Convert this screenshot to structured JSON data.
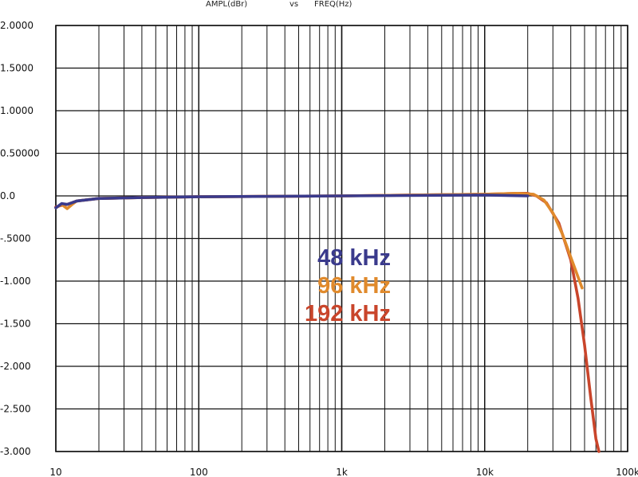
{
  "chart_data": {
    "type": "line",
    "title_left": "AMPL(dBr)",
    "title_mid": "vs",
    "title_right": "FREQ(Hz)",
    "xscale": "log",
    "xlim": [
      10,
      100000
    ],
    "ylim": [
      -3.0,
      2.0
    ],
    "grid": true,
    "x_ticks": [
      {
        "value": 10,
        "label": "10"
      },
      {
        "value": 100,
        "label": "100"
      },
      {
        "value": 1000,
        "label": "1k"
      },
      {
        "value": 10000,
        "label": "10k"
      },
      {
        "value": 100000,
        "label": "100k"
      }
    ],
    "y_ticks": [
      {
        "value": 2.0,
        "label": "2.0000"
      },
      {
        "value": 1.5,
        "label": "1.5000"
      },
      {
        "value": 1.0,
        "label": "1.0000"
      },
      {
        "value": 0.5,
        "label": "0.50000"
      },
      {
        "value": 0.0,
        "label": "0.0"
      },
      {
        "value": -0.5,
        "label": "-.5000"
      },
      {
        "value": -1.0,
        "label": "-1.000"
      },
      {
        "value": -1.5,
        "label": "-1.500"
      },
      {
        "value": -2.0,
        "label": "-2.000"
      },
      {
        "value": -2.5,
        "label": "-2.500"
      },
      {
        "value": -3.0,
        "label": "-3.000"
      }
    ],
    "series": [
      {
        "name": "192 kHz",
        "color": "#c9452b",
        "x": [
          10,
          11,
          12,
          14,
          20,
          40,
          100,
          1000,
          10000,
          17000,
          20000,
          23000,
          27000,
          33000,
          40000,
          45000,
          50000,
          55000,
          60000,
          63000
        ],
        "y": [
          -0.13,
          -0.11,
          -0.1,
          -0.06,
          -0.03,
          -0.02,
          -0.01,
          0.0,
          0.02,
          0.03,
          0.03,
          0.0,
          -0.08,
          -0.32,
          -0.75,
          -1.2,
          -1.75,
          -2.35,
          -2.85,
          -3.0
        ]
      },
      {
        "name": "96 kHz",
        "color": "#e08a2c",
        "x": [
          10,
          11,
          12,
          13,
          14,
          20,
          40,
          100,
          1000,
          10000,
          17000,
          22000,
          26000,
          30000,
          35000,
          40000,
          45000,
          48000
        ],
        "y": [
          -0.14,
          -0.1,
          -0.15,
          -0.1,
          -0.06,
          -0.03,
          -0.02,
          -0.01,
          0.0,
          0.02,
          0.03,
          0.02,
          -0.05,
          -0.2,
          -0.45,
          -0.72,
          -0.95,
          -1.08
        ]
      },
      {
        "name": "48 kHz",
        "color": "#3a3a8c",
        "x": [
          10,
          11,
          12,
          13,
          14,
          20,
          40,
          100,
          1000,
          10000,
          20000
        ],
        "y": [
          -0.14,
          -0.09,
          -0.1,
          -0.08,
          -0.06,
          -0.03,
          -0.02,
          -0.01,
          0.0,
          0.01,
          0.0
        ]
      }
    ],
    "legend": [
      {
        "label": "48 kHz",
        "color": "#3a3a8c"
      },
      {
        "label": "96 kHz",
        "color": "#e08a2c"
      },
      {
        "label": "192 kHz",
        "color": "#c9452b"
      }
    ]
  }
}
